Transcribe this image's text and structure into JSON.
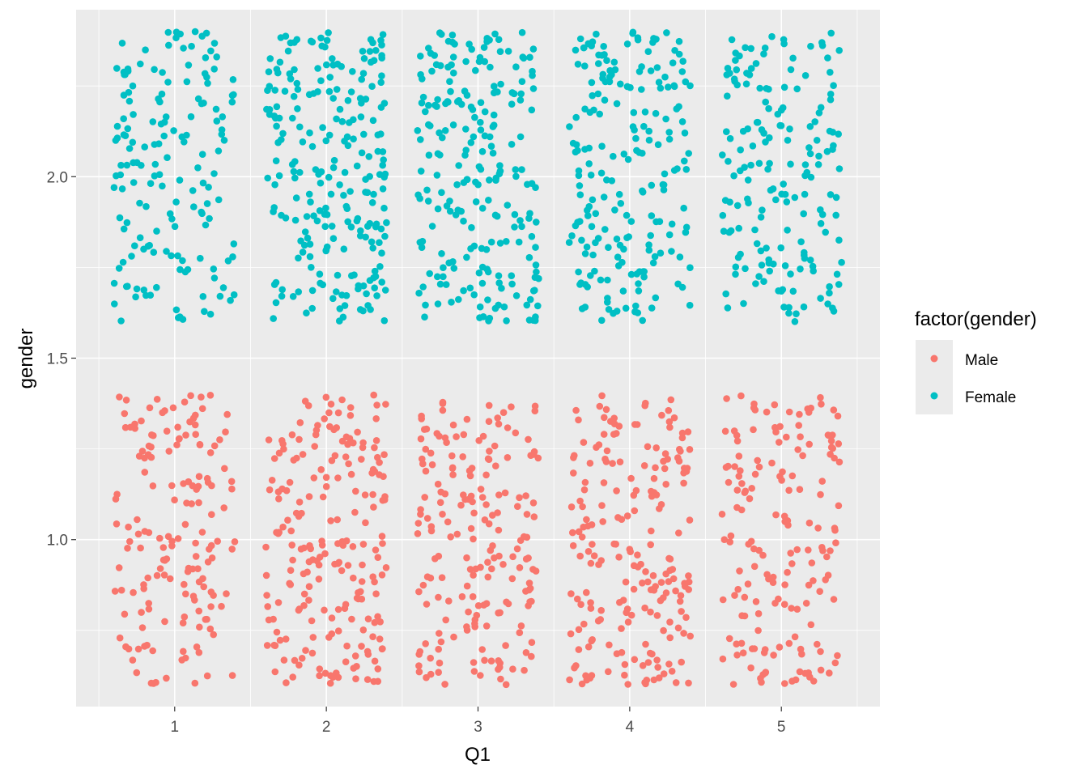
{
  "chart_data": {
    "type": "scatter",
    "title": "",
    "xlabel": "Q1",
    "ylabel": "gender",
    "xlim": [
      0.35,
      5.65
    ],
    "ylim": [
      0.54,
      2.46
    ],
    "x_ticks": [
      "1",
      "2",
      "3",
      "4",
      "5"
    ],
    "y_ticks": [
      "1.0",
      "1.5",
      "2.0"
    ],
    "y_tick_values": [
      1.0,
      1.5,
      2.0
    ],
    "jitter": {
      "width": 0.4,
      "height": 0.4
    },
    "counts": {
      "Male": [
        160,
        210,
        190,
        205,
        165
      ],
      "Female": [
        160,
        235,
        225,
        205,
        175
      ]
    },
    "grid": true,
    "background": "#ebebeb",
    "legend": {
      "title": "factor(gender)",
      "position": "right",
      "entries": [
        {
          "label": "Male",
          "color": "#F8766D",
          "value": 1
        },
        {
          "label": "Female",
          "color": "#00BFC4",
          "value": 2
        }
      ]
    }
  }
}
